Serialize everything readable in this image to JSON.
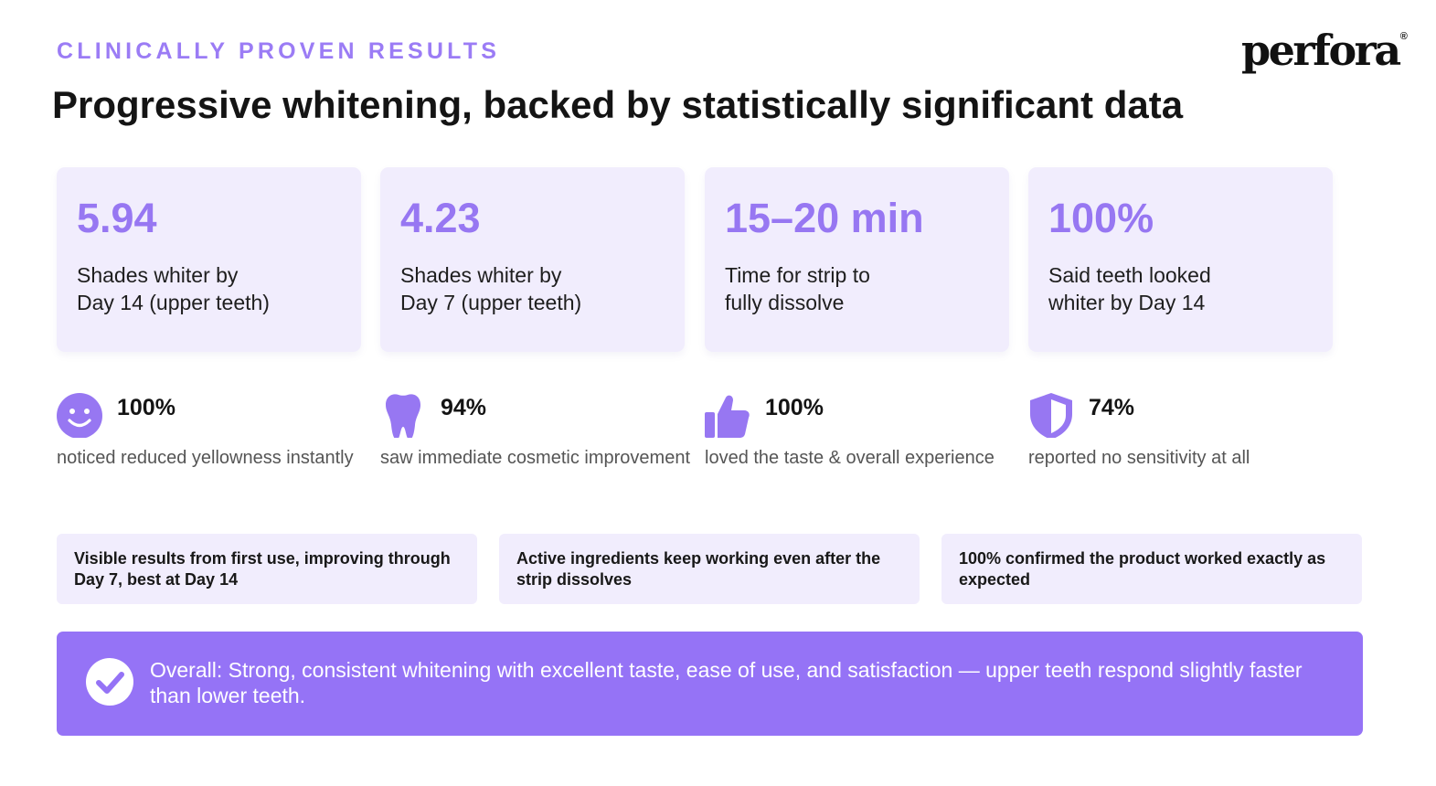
{
  "header": {
    "eyebrow": "CLINICALLY PROVEN RESULTS",
    "brand": "perfora",
    "brand_mark": "®",
    "title": "Progressive whitening, backed by statistically significant data"
  },
  "stat_cards": [
    {
      "value": "5.94",
      "description": "Shades whiter by\nDay 14 (upper teeth)"
    },
    {
      "value": "4.23",
      "description": "Shades whiter by\nDay 7 (upper teeth)"
    },
    {
      "value": "15–20 min",
      "description": "Time for strip to\nfully dissolve"
    },
    {
      "value": "100%",
      "description": "Said teeth looked\nwhiter by Day 14"
    }
  ],
  "metrics": [
    {
      "icon": "smiley-icon",
      "percent": "100%",
      "caption": "noticed reduced yellowness instantly"
    },
    {
      "icon": "tooth-icon",
      "percent": "94%",
      "caption": "saw immediate cosmetic improvement"
    },
    {
      "icon": "thumbs-up-icon",
      "percent": "100%",
      "caption": "loved the taste & overall experience"
    },
    {
      "icon": "shield-icon",
      "percent": "74%",
      "caption": "reported no sensitivity at all"
    }
  ],
  "notes": [
    "Visible results from first use, improving through Day 7, best at Day 14",
    "Active ingredients keep working even after the strip dissolves",
    "100% confirmed the product worked exactly as expected"
  ],
  "summary": {
    "icon": "check-circle-icon",
    "text": "Overall: Strong, consistent whitening with excellent taste, ease of use, and satisfaction — upper teeth respond slightly faster than lower teeth."
  },
  "colors": {
    "accent": "#9777f2",
    "card_background": "#f1edfd",
    "summary_background": "#9573f6",
    "text": "#141414"
  }
}
